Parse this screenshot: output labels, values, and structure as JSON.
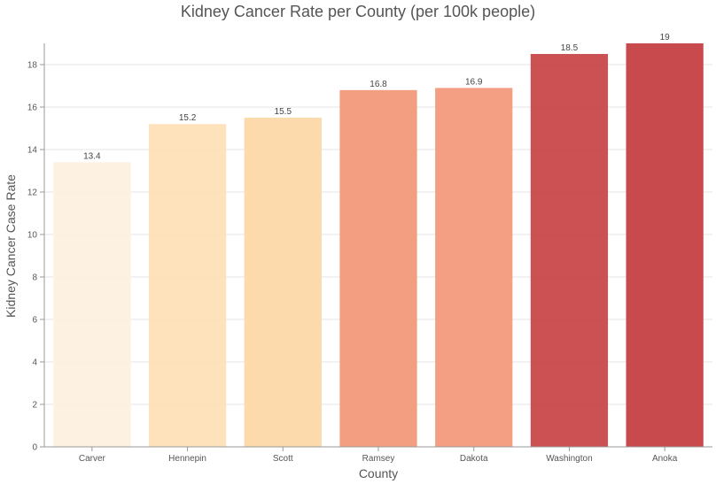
{
  "chart_data": {
    "type": "bar",
    "title": "Kidney Cancer Rate per County (per 100k people)",
    "xlabel": "County",
    "ylabel": "Kidney Cancer Case Rate",
    "categories": [
      "Carver",
      "Hennepin",
      "Scott",
      "Ramsey",
      "Dakota",
      "Washington",
      "Anoka"
    ],
    "values": [
      13.4,
      15.2,
      15.5,
      16.8,
      16.9,
      18.5,
      19
    ],
    "data_labels": [
      "13.4",
      "15.2",
      "15.5",
      "16.8",
      "16.9",
      "18.5",
      "19"
    ],
    "colors": [
      "#fdf0df",
      "#fde0b8",
      "#fcd8a6",
      "#f3997a",
      "#f39a7c",
      "#c8484a",
      "#c54042"
    ],
    "yticks": [
      0,
      2,
      4,
      6,
      8,
      10,
      12,
      14,
      16,
      18
    ],
    "ylim": [
      0,
      19
    ],
    "grid": true,
    "legend": false
  }
}
